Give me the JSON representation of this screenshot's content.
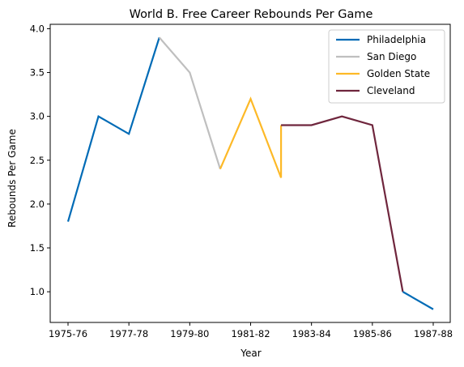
{
  "chart_data": {
    "type": "line",
    "title": "World B. Free Career Rebounds Per Game",
    "xlabel": "Year",
    "ylabel": "Rebounds Per Game",
    "x_categories": [
      "1975-76",
      "1976-77",
      "1977-78",
      "1978-79",
      "1979-80",
      "1980-81",
      "1981-82",
      "1982-83",
      "1983-84",
      "1984-85",
      "1985-86",
      "1986-87",
      "1987-88"
    ],
    "x_tick_labels": [
      "1975-76",
      "1977-78",
      "1979-80",
      "1981-82",
      "1983-84",
      "1985-86",
      "1987-88"
    ],
    "ylim": [
      0.65,
      4.05
    ],
    "y_ticks": [
      1.0,
      1.5,
      2.0,
      2.5,
      3.0,
      3.5,
      4.0
    ],
    "y_tick_labels": [
      "1.0",
      "1.5",
      "2.0",
      "2.5",
      "3.0",
      "3.5",
      "4.0"
    ],
    "grid": false,
    "legend_position": "top-right",
    "series": [
      {
        "name": "Philadelphia",
        "color": "#006bb6",
        "points": [
          [
            "1975-76",
            1.8
          ],
          [
            "1976-77",
            3.0
          ],
          [
            "1977-78",
            2.8
          ],
          [
            "1978-79",
            3.9
          ]
        ]
      },
      {
        "name": "San Diego",
        "color": "#bfbfbf",
        "points": [
          [
            "1978-79",
            3.9
          ],
          [
            "1979-80",
            3.5
          ],
          [
            "1980-81",
            2.4
          ]
        ]
      },
      {
        "name": "Golden State",
        "color": "#fdb927",
        "points": [
          [
            "1980-81",
            2.4
          ],
          [
            "1981-82",
            3.2
          ],
          [
            "1982-83",
            2.3
          ],
          [
            "1982-83",
            2.9
          ]
        ]
      },
      {
        "name": "Cleveland",
        "color": "#6f263d",
        "points": [
          [
            "1982-83",
            2.9
          ],
          [
            "1983-84",
            2.9
          ],
          [
            "1984-85",
            3.0
          ],
          [
            "1985-86",
            2.9
          ],
          [
            "1986-87",
            1.0
          ]
        ]
      },
      {
        "name": "Philadelphia",
        "color": "#006bb6",
        "legend": false,
        "points": [
          [
            "1986-87",
            1.0
          ],
          [
            "1987-88",
            0.8
          ]
        ]
      }
    ]
  }
}
